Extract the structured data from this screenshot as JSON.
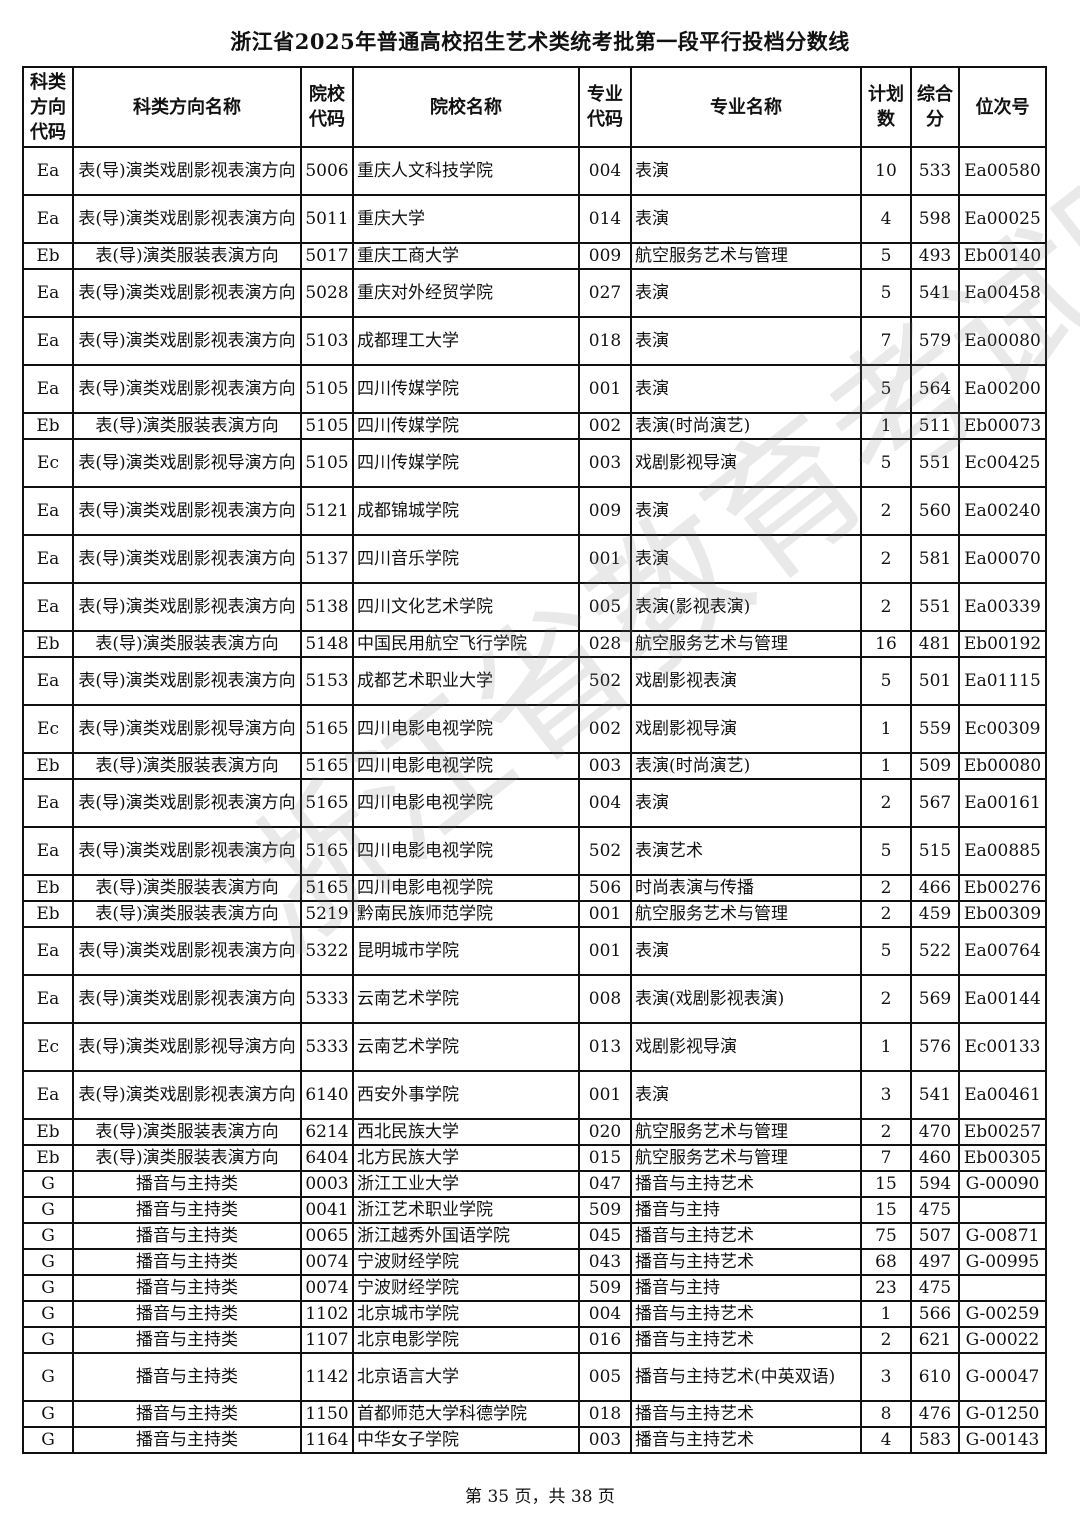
{
  "title": "浙江省2025年普通高校招生艺术类统考批第一段平行投档分数线",
  "watermark": "浙江省教育考试院",
  "columns": [
    "科类方向代码",
    "科类方向名称",
    "院校代码",
    "院校名称",
    "专业代码",
    "专业名称",
    "计划数",
    "综合分",
    "位次号"
  ],
  "rows": [
    [
      "Ea",
      "表(导)演类戏剧影视表演方向",
      "5006",
      "重庆人文科技学院",
      "004",
      "表演",
      "10",
      "533",
      "Ea00580"
    ],
    [
      "Ea",
      "表(导)演类戏剧影视表演方向",
      "5011",
      "重庆大学",
      "014",
      "表演",
      "4",
      "598",
      "Ea00025"
    ],
    [
      "Eb",
      "表(导)演类服装表演方向",
      "5017",
      "重庆工商大学",
      "009",
      "航空服务艺术与管理",
      "5",
      "493",
      "Eb00140"
    ],
    [
      "Ea",
      "表(导)演类戏剧影视表演方向",
      "5028",
      "重庆对外经贸学院",
      "027",
      "表演",
      "5",
      "541",
      "Ea00458"
    ],
    [
      "Ea",
      "表(导)演类戏剧影视表演方向",
      "5103",
      "成都理工大学",
      "018",
      "表演",
      "7",
      "579",
      "Ea00080"
    ],
    [
      "Ea",
      "表(导)演类戏剧影视表演方向",
      "5105",
      "四川传媒学院",
      "001",
      "表演",
      "5",
      "564",
      "Ea00200"
    ],
    [
      "Eb",
      "表(导)演类服装表演方向",
      "5105",
      "四川传媒学院",
      "002",
      "表演(时尚演艺)",
      "1",
      "511",
      "Eb00073"
    ],
    [
      "Ec",
      "表(导)演类戏剧影视导演方向",
      "5105",
      "四川传媒学院",
      "003",
      "戏剧影视导演",
      "5",
      "551",
      "Ec00425"
    ],
    [
      "Ea",
      "表(导)演类戏剧影视表演方向",
      "5121",
      "成都锦城学院",
      "009",
      "表演",
      "2",
      "560",
      "Ea00240"
    ],
    [
      "Ea",
      "表(导)演类戏剧影视表演方向",
      "5137",
      "四川音乐学院",
      "001",
      "表演",
      "2",
      "581",
      "Ea00070"
    ],
    [
      "Ea",
      "表(导)演类戏剧影视表演方向",
      "5138",
      "四川文化艺术学院",
      "005",
      "表演(影视表演)",
      "2",
      "551",
      "Ea00339"
    ],
    [
      "Eb",
      "表(导)演类服装表演方向",
      "5148",
      "中国民用航空飞行学院",
      "028",
      "航空服务艺术与管理",
      "16",
      "481",
      "Eb00192"
    ],
    [
      "Ea",
      "表(导)演类戏剧影视表演方向",
      "5153",
      "成都艺术职业大学",
      "502",
      "戏剧影视表演",
      "5",
      "501",
      "Ea01115"
    ],
    [
      "Ec",
      "表(导)演类戏剧影视导演方向",
      "5165",
      "四川电影电视学院",
      "002",
      "戏剧影视导演",
      "1",
      "559",
      "Ec00309"
    ],
    [
      "Eb",
      "表(导)演类服装表演方向",
      "5165",
      "四川电影电视学院",
      "003",
      "表演(时尚演艺)",
      "1",
      "509",
      "Eb00080"
    ],
    [
      "Ea",
      "表(导)演类戏剧影视表演方向",
      "5165",
      "四川电影电视学院",
      "004",
      "表演",
      "2",
      "567",
      "Ea00161"
    ],
    [
      "Ea",
      "表(导)演类戏剧影视表演方向",
      "5165",
      "四川电影电视学院",
      "502",
      "表演艺术",
      "5",
      "515",
      "Ea00885"
    ],
    [
      "Eb",
      "表(导)演类服装表演方向",
      "5165",
      "四川电影电视学院",
      "506",
      "时尚表演与传播",
      "2",
      "466",
      "Eb00276"
    ],
    [
      "Eb",
      "表(导)演类服装表演方向",
      "5219",
      "黔南民族师范学院",
      "001",
      "航空服务艺术与管理",
      "2",
      "459",
      "Eb00309"
    ],
    [
      "Ea",
      "表(导)演类戏剧影视表演方向",
      "5322",
      "昆明城市学院",
      "001",
      "表演",
      "5",
      "522",
      "Ea00764"
    ],
    [
      "Ea",
      "表(导)演类戏剧影视表演方向",
      "5333",
      "云南艺术学院",
      "008",
      "表演(戏剧影视表演)",
      "2",
      "569",
      "Ea00144"
    ],
    [
      "Ec",
      "表(导)演类戏剧影视导演方向",
      "5333",
      "云南艺术学院",
      "013",
      "戏剧影视导演",
      "1",
      "576",
      "Ec00133"
    ],
    [
      "Ea",
      "表(导)演类戏剧影视表演方向",
      "6140",
      "西安外事学院",
      "001",
      "表演",
      "3",
      "541",
      "Ea00461"
    ],
    [
      "Eb",
      "表(导)演类服装表演方向",
      "6214",
      "西北民族大学",
      "020",
      "航空服务艺术与管理",
      "2",
      "470",
      "Eb00257"
    ],
    [
      "Eb",
      "表(导)演类服装表演方向",
      "6404",
      "北方民族大学",
      "015",
      "航空服务艺术与管理",
      "7",
      "460",
      "Eb00305"
    ],
    [
      "G",
      "播音与主持类",
      "0003",
      "浙江工业大学",
      "047",
      "播音与主持艺术",
      "15",
      "594",
      "G-00090"
    ],
    [
      "G",
      "播音与主持类",
      "0041",
      "浙江艺术职业学院",
      "509",
      "播音与主持",
      "15",
      "475",
      ""
    ],
    [
      "G",
      "播音与主持类",
      "0065",
      "浙江越秀外国语学院",
      "045",
      "播音与主持艺术",
      "75",
      "507",
      "G-00871"
    ],
    [
      "G",
      "播音与主持类",
      "0074",
      "宁波财经学院",
      "043",
      "播音与主持艺术",
      "68",
      "497",
      "G-00995"
    ],
    [
      "G",
      "播音与主持类",
      "0074",
      "宁波财经学院",
      "509",
      "播音与主持",
      "23",
      "475",
      ""
    ],
    [
      "G",
      "播音与主持类",
      "1102",
      "北京城市学院",
      "004",
      "播音与主持艺术",
      "1",
      "566",
      "G-00259"
    ],
    [
      "G",
      "播音与主持类",
      "1107",
      "北京电影学院",
      "016",
      "播音与主持艺术",
      "2",
      "621",
      "G-00022"
    ],
    [
      "G",
      "播音与主持类",
      "1142",
      "北京语言大学",
      "005",
      "播音与主持艺术(中英双语)",
      "3",
      "610",
      "G-00047"
    ],
    [
      "G",
      "播音与主持类",
      "1150",
      "首都师范大学科德学院",
      "018",
      "播音与主持艺术",
      "8",
      "476",
      "G-01250"
    ],
    [
      "G",
      "播音与主持类",
      "1164",
      "中华女子学院",
      "003",
      "播音与主持艺术",
      "4",
      "583",
      "G-00143"
    ]
  ],
  "footer": "第 35 页，共 38 页"
}
